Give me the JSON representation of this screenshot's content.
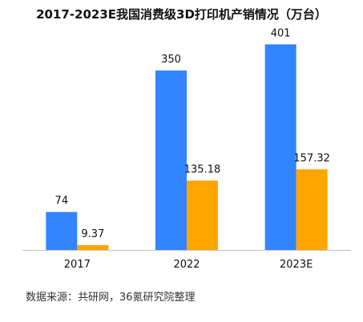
{
  "chart_data": {
    "type": "bar",
    "title": "2017-2023E我国消费级3D打印机产销情况（万台）",
    "categories": [
      "2017",
      "2022",
      "2023E"
    ],
    "series": [
      {
        "values": [
          74,
          350,
          401
        ],
        "labels": [
          "74",
          "350",
          "401"
        ],
        "color": "#3385FF"
      },
      {
        "values": [
          9.37,
          135.18,
          157.32
        ],
        "labels": [
          "9.37",
          "135.18",
          "157.32"
        ],
        "color": "#FFA500"
      }
    ],
    "ylim": [
      0,
      450
    ],
    "grid": false,
    "source": "数据来源：共研网，36氪研究院整理"
  }
}
